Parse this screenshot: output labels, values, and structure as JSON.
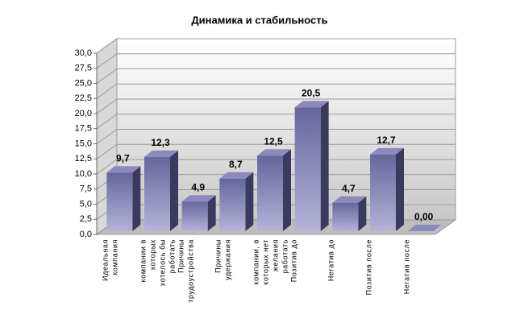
{
  "chart_data": {
    "type": "bar",
    "title": "Динамика и стабильность",
    "categories": [
      "Идеальная компания",
      "компании в которых хотелось бы работать",
      "Причины трудоустройства",
      "Причины удержания",
      "компании, в которых нет желания работать",
      "Позитив до",
      "Негатив до",
      "Позитив после",
      "Негатив после"
    ],
    "values": [
      9.7,
      12.3,
      4.9,
      8.7,
      12.5,
      20.5,
      4.7,
      12.7,
      0
    ],
    "value_labels": [
      "9,7",
      "12,3",
      "4,9",
      "8,7",
      "12,5",
      "20,5",
      "4,7",
      "12,7",
      "0,00"
    ],
    "color": "#7878b4",
    "ylim": [
      0,
      30
    ],
    "yticks": [
      {
        "value": 0,
        "label": "0,0"
      },
      {
        "value": 2.5,
        "label": "2,5"
      },
      {
        "value": 5,
        "label": "5,0"
      },
      {
        "value": 7.5,
        "label": "7,5"
      },
      {
        "value": 10,
        "label": "10,0"
      },
      {
        "value": 12.5,
        "label": "12,5"
      },
      {
        "value": 15,
        "label": "15,0"
      },
      {
        "value": 17.5,
        "label": "17,5"
      },
      {
        "value": 20,
        "label": "20,0"
      },
      {
        "value": 22.5,
        "label": "22,5"
      },
      {
        "value": 25,
        "label": "25,0"
      },
      {
        "value": 27.5,
        "label": "27,5"
      },
      {
        "value": 30,
        "label": "30,0"
      }
    ],
    "grid": true
  }
}
